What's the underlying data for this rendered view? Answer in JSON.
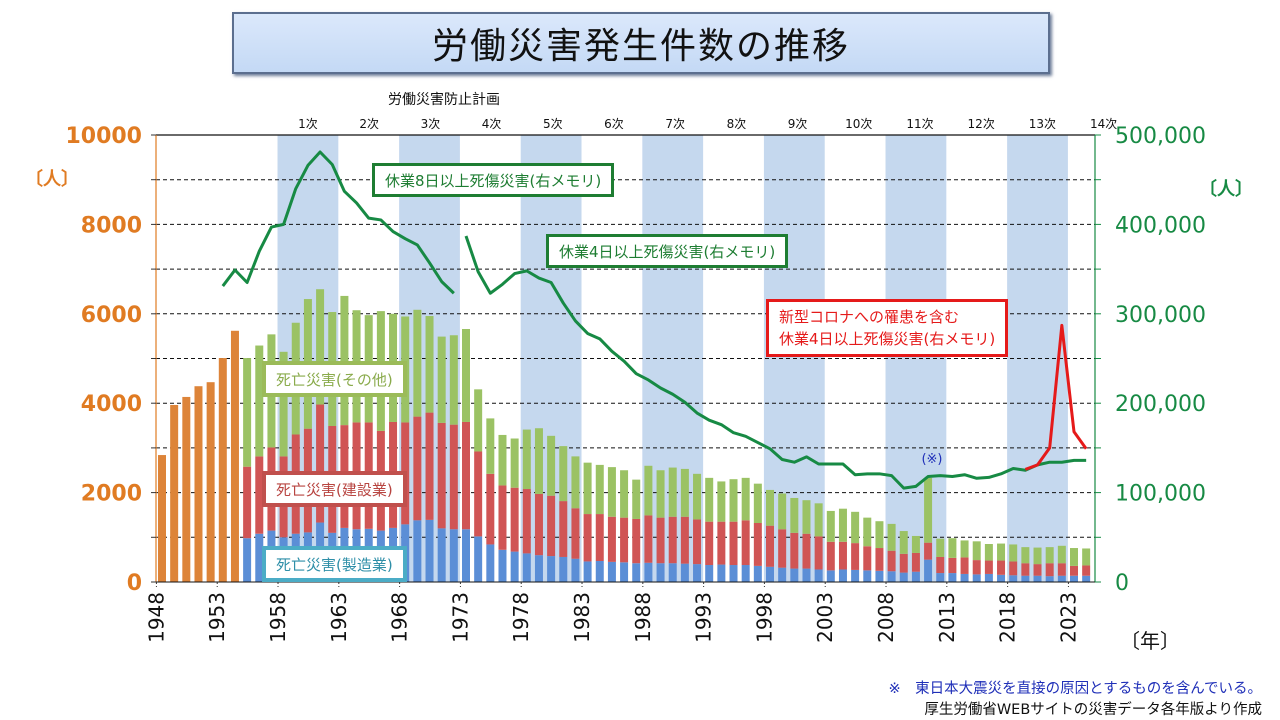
{
  "title": "労働災害発生件数の推移",
  "plan_header": "労働災害防止計画",
  "plans": [
    "1次",
    "2次",
    "3次",
    "4次",
    "5次",
    "6次",
    "7次",
    "8次",
    "9次",
    "10次",
    "11次",
    "12次",
    "13次",
    "14次"
  ],
  "left_unit": "〔人〕",
  "right_unit": "〔人〕",
  "x_unit": "〔年〕",
  "labels": {
    "other": "死亡災害(その他)",
    "construction": "死亡災害(建設業)",
    "manufacturing": "死亡災害(製造業)",
    "line8": "休業8日以上死傷災害(右メモリ)",
    "line4": "休業4日以上死傷災害(右メモリ)",
    "covid_line1": "新型コロナへの罹患を含む",
    "covid_line2": "休業4日以上死傷災害(右メモリ)",
    "asterisk": "(※)"
  },
  "notes": {
    "note1": "※　東日本大震災を直接の原因とするものを含んでいる。",
    "note2": "厚生労働省WEBサイトの災害データ各年版より作成"
  },
  "colors": {
    "total_bar": "#dd8439",
    "manufacturing": "#5b8ed6",
    "construction": "#d05555",
    "other": "#9bc264",
    "line": "#178a44",
    "covid": "#e51a1a",
    "plan_band": "#c5d8ee",
    "left_axis": "#e07b22",
    "right_axis": "#178a44"
  },
  "chart_data": {
    "type": "bar",
    "title": "労働災害発生件数の推移",
    "xlabel": "〔年〕",
    "ylabel_left": "〔人〕",
    "ylabel_right": "〔人〕",
    "ylim_left": [
      0,
      10000
    ],
    "ylim_right": [
      0,
      500000
    ],
    "left_ticks": [
      "0",
      "2000",
      "4000",
      "6000",
      "8000",
      "10000"
    ],
    "right_ticks": [
      "0",
      "100,000",
      "200,000",
      "300,000",
      "400,000",
      "500,000"
    ],
    "x_ticks": [
      "1948",
      "1953",
      "1958",
      "1963",
      "1968",
      "1973",
      "1978",
      "1983",
      "1988",
      "1993",
      "1998",
      "2003",
      "2008",
      "2013",
      "2018",
      "2023"
    ],
    "grid": "dashed horizontal",
    "plan_bands_shaded": [
      [
        1958,
        1962
      ],
      [
        1968,
        1972
      ],
      [
        1978,
        1982
      ],
      [
        1988,
        1992
      ],
      [
        1998,
        2002
      ],
      [
        2008,
        2012
      ],
      [
        2018,
        2022
      ]
    ],
    "total_only_years": [
      1948,
      1949,
      1950,
      1951,
      1952,
      1953,
      1954
    ],
    "total_only_values": [
      2840,
      3960,
      4140,
      4380,
      4470,
      5010,
      5620
    ],
    "stacked_years": [
      1955,
      1956,
      1957,
      1958,
      1959,
      1960,
      1961,
      1962,
      1963,
      1964,
      1965,
      1966,
      1967,
      1968,
      1969,
      1970,
      1971,
      1972,
      1973,
      1974,
      1975,
      1976,
      1977,
      1978,
      1979,
      1980,
      1981,
      1982,
      1983,
      1984,
      1985,
      1986,
      1987,
      1988,
      1989,
      1990,
      1991,
      1992,
      1993,
      1994,
      1995,
      1996,
      1997,
      1998,
      1999,
      2000,
      2001,
      2002,
      2003,
      2004,
      2005,
      2006,
      2007,
      2008,
      2009,
      2010,
      2011,
      2012,
      2013,
      2014,
      2015,
      2016,
      2017,
      2018,
      2019,
      2020,
      2021,
      2022,
      2023,
      2024
    ],
    "series": [
      {
        "name": "死亡災害(製造業)",
        "values": [
          980,
          1080,
          1150,
          1000,
          1080,
          1110,
          1330,
          1100,
          1210,
          1180,
          1190,
          1150,
          1210,
          1290,
          1380,
          1390,
          1200,
          1180,
          1180,
          1020,
          840,
          720,
          680,
          640,
          600,
          580,
          560,
          520,
          460,
          470,
          450,
          440,
          420,
          430,
          420,
          420,
          410,
          400,
          380,
          390,
          380,
          380,
          360,
          340,
          320,
          300,
          300,
          280,
          260,
          280,
          270,
          260,
          250,
          240,
          210,
          230,
          500,
          200,
          200,
          180,
          170,
          180,
          160,
          150,
          140,
          140,
          130,
          140,
          140,
          140
        ]
      },
      {
        "name": "死亡災害(建設業)",
        "values": [
          1600,
          1730,
          1860,
          1810,
          2220,
          2320,
          2640,
          2390,
          2300,
          2390,
          2380,
          2230,
          2370,
          2280,
          2320,
          2400,
          2360,
          2340,
          2400,
          1900,
          1580,
          1440,
          1430,
          1440,
          1370,
          1350,
          1250,
          1130,
          1060,
          1050,
          1010,
          1000,
          990,
          1060,
          1020,
          1040,
          1050,
          1000,
          970,
          960,
          970,
          1000,
          960,
          920,
          860,
          800,
          780,
          740,
          640,
          620,
          600,
          540,
          510,
          460,
          420,
          420,
          380,
          360,
          340,
          370,
          320,
          300,
          320,
          310,
          280,
          260,
          290,
          280,
          220,
          230
        ]
      },
      {
        "name": "死亡災害(その他)",
        "values": [
          2430,
          2480,
          2530,
          2340,
          2500,
          2900,
          2580,
          2550,
          2890,
          2510,
          2400,
          2680,
          2420,
          2370,
          2390,
          2160,
          1930,
          2000,
          2080,
          1390,
          1240,
          1130,
          1100,
          1330,
          1470,
          1340,
          1230,
          1160,
          1150,
          1100,
          1110,
          1060,
          880,
          1110,
          1060,
          1100,
          1070,
          1020,
          980,
          900,
          950,
          950,
          880,
          800,
          800,
          780,
          750,
          740,
          690,
          740,
          700,
          640,
          600,
          600,
          510,
          380,
          1450,
          410,
          440,
          380,
          420,
          370,
          380,
          380,
          360,
          370,
          360,
          390,
          400,
          380
        ]
      },
      {
        "name": "休業8日以上死傷災害(右メモリ)",
        "axis": "right",
        "x": [
          1953,
          1954,
          1955,
          1956,
          1957,
          1958,
          1959,
          1960,
          1961,
          1962,
          1963,
          1964,
          1965,
          1966,
          1967,
          1968,
          1969,
          1970,
          1971,
          1972
        ],
        "values": [
          331000,
          349000,
          335000,
          370000,
          397000,
          400000,
          440000,
          466000,
          481000,
          467000,
          437000,
          424000,
          407000,
          405000,
          392000,
          384000,
          377000,
          357000,
          336000,
          323000
        ]
      },
      {
        "name": "休業4日以上死傷災害(右メモリ)",
        "axis": "right",
        "x": [
          1973,
          1974,
          1975,
          1976,
          1977,
          1978,
          1979,
          1980,
          1981,
          1982,
          1983,
          1984,
          1985,
          1986,
          1987,
          1988,
          1989,
          1990,
          1991,
          1992,
          1993,
          1994,
          1995,
          1996,
          1997,
          1998,
          1999,
          2000,
          2001,
          2002,
          2003,
          2004,
          2005,
          2006,
          2007,
          2008,
          2009,
          2010,
          2011,
          2012,
          2013,
          2014,
          2015,
          2016,
          2017,
          2018,
          2019,
          2020,
          2021,
          2022,
          2023,
          2024
        ],
        "values": [
          387000,
          347000,
          323000,
          333000,
          345000,
          348000,
          340000,
          335000,
          312000,
          292000,
          278000,
          272000,
          258000,
          247000,
          233000,
          226000,
          217000,
          210000,
          201000,
          189000,
          181000,
          176000,
          167000,
          163000,
          156000,
          149000,
          137000,
          134000,
          140000,
          132000,
          132000,
          132000,
          120000,
          121000,
          121000,
          119000,
          105000,
          107000,
          118000,
          119000,
          118000,
          120000,
          116000,
          117000,
          121000,
          127000,
          125000,
          131000,
          134000,
          134000,
          136000,
          136000
        ]
      },
      {
        "name": "新型コロナへの罹患を含む休業4日以上死傷災害(右メモリ)",
        "axis": "right",
        "x": [
          2019,
          2020,
          2021,
          2022,
          2023,
          2024
        ],
        "values": [
          126000,
          131000,
          150000,
          287000,
          168000,
          149000
        ]
      }
    ],
    "annotation": {
      "text": "(※)",
      "year": 2011
    }
  }
}
